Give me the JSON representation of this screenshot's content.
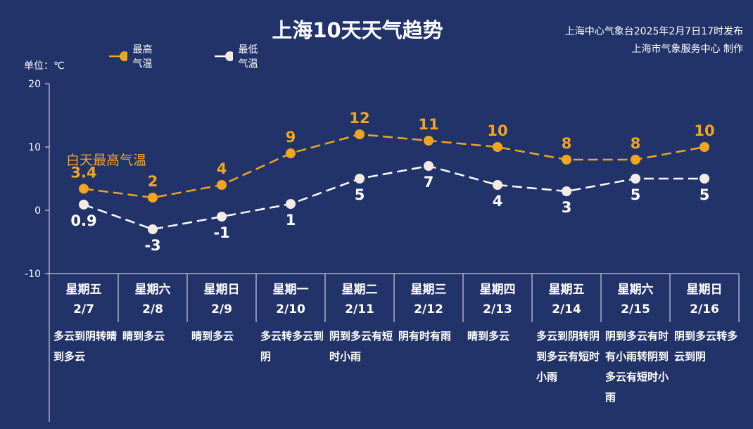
{
  "title": "上海10天天气趋势",
  "issuer": {
    "line1": "上海中心气象台2025年2月7日17时发布",
    "line2": "上海市气象服务中心 制作"
  },
  "unit_label": "单位：℃",
  "annotation": "白天最高气温",
  "colors": {
    "background": "#22336a",
    "high": "#f2a51f",
    "low": "#ffffff"
  },
  "chart_data": {
    "type": "line",
    "title": "上海10天天气趋势",
    "ylabel": "单位：℃",
    "ylim": [
      -10,
      20
    ],
    "yticks": [
      "20",
      "10",
      "0",
      "-10"
    ],
    "legend_position": "top-left",
    "grid": false,
    "categories": [
      {
        "weekday": "星期五",
        "date": "2/7"
      },
      {
        "weekday": "星期六",
        "date": "2/8"
      },
      {
        "weekday": "星期日",
        "date": "2/9"
      },
      {
        "weekday": "星期一",
        "date": "2/10"
      },
      {
        "weekday": "星期二",
        "date": "2/11"
      },
      {
        "weekday": "星期三",
        "date": "2/12"
      },
      {
        "weekday": "星期四",
        "date": "2/13"
      },
      {
        "weekday": "星期五",
        "date": "2/14"
      },
      {
        "weekday": "星期六",
        "date": "2/15"
      },
      {
        "weekday": "星期日",
        "date": "2/16"
      }
    ],
    "series": [
      {
        "name": "最高气温",
        "values": [
          3.4,
          2,
          4,
          9,
          12,
          11,
          10,
          8,
          8,
          10
        ],
        "labels": [
          "3.4",
          "2",
          "4",
          "9",
          "12",
          "11",
          "10",
          "8",
          "8",
          "10"
        ]
      },
      {
        "name": "最低气温",
        "values": [
          0.9,
          -3,
          -1,
          1,
          5,
          7,
          4,
          3,
          5,
          5
        ],
        "labels": [
          "0.9",
          "-3",
          "-1",
          "1",
          "5",
          "7",
          "4",
          "3",
          "5",
          "5"
        ]
      }
    ],
    "weather": [
      "多云到阴转晴到多云",
      "晴到多云",
      "晴到多云",
      "多云转多云到阴",
      "阴到多云有短时小雨",
      "阴有时有雨",
      "晴到多云",
      "多云到阴转阴到多云有短时小雨",
      "阴到多云有时有小雨转阴到多云有短时小雨",
      "阴到多云转多云到阴"
    ]
  }
}
